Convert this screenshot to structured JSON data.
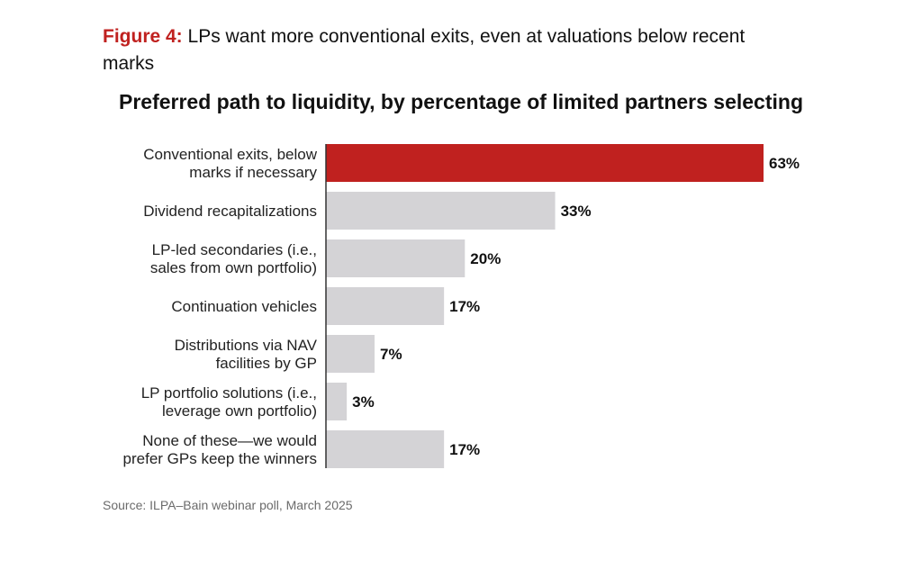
{
  "figure": {
    "label": "Figure 4:",
    "caption": "LPs want more conventional exits, even at valuations below recent marks"
  },
  "source": "Source: ILPA–Bain webinar poll, March 2025",
  "colors": {
    "highlight": "#c0211f",
    "bar": "#d4d3d6",
    "axis": "#333333"
  },
  "chart_data": {
    "type": "bar",
    "orientation": "horizontal",
    "title": "Preferred path to liquidity, by percentage of limited partners selecting",
    "xlabel": "",
    "ylabel": "",
    "xlim": [
      0,
      63
    ],
    "grid": false,
    "legend": "none",
    "categories": [
      [
        "Conventional exits, below",
        "marks if necessary"
      ],
      [
        "Dividend recapitalizations"
      ],
      [
        "LP-led secondaries (i.e.,",
        "sales from own portfolio)"
      ],
      [
        "Continuation vehicles"
      ],
      [
        "Distributions via NAV",
        "facilities by GP"
      ],
      [
        "LP portfolio solutions (i.e.,",
        "leverage own portfolio)"
      ],
      [
        "None of these—we would",
        "prefer GPs keep the winners"
      ]
    ],
    "values": [
      63,
      33,
      20,
      17,
      7,
      3,
      17
    ],
    "value_labels": [
      "63%",
      "33%",
      "20%",
      "17%",
      "7%",
      "3%",
      "17%"
    ],
    "highlight_index": 0
  }
}
